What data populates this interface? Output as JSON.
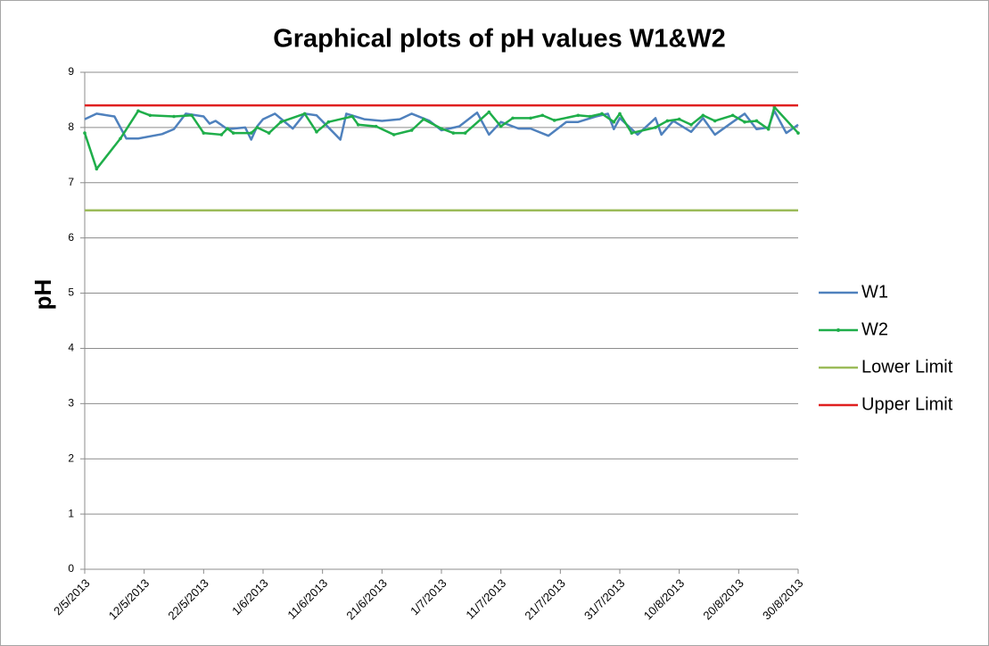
{
  "chart_data": {
    "type": "line",
    "title": "Graphical plots of pH values W1&W2",
    "y_label": "pH",
    "ylim": [
      0,
      9
    ],
    "yticks": [
      0,
      1,
      2,
      3,
      4,
      5,
      6,
      7,
      8,
      9
    ],
    "xlim": [
      "2/5/2013",
      "30/8/2013"
    ],
    "xticks": [
      "2/5/2013",
      "12/5/2013",
      "22/5/2013",
      "1/6/2013",
      "11/6/2013",
      "21/6/2013",
      "1/7/2013",
      "11/7/2013",
      "21/7/2013",
      "31/7/2013",
      "10/8/2013",
      "20/8/2013",
      "30/8/2013"
    ],
    "grid": true,
    "legend": "right",
    "series": [
      {
        "name": "W1",
        "color": "#4f81bd",
        "x": [
          "2/5/2013",
          "4/5/2013",
          "7/5/2013",
          "9/5/2013",
          "11/5/2013",
          "15/5/2013",
          "17/5/2013",
          "19/5/2013",
          "22/5/2013",
          "23/5/2013",
          "24/5/2013",
          "26/5/2013",
          "29/5/2013",
          "30/5/2013",
          "31/5/2013",
          "1/6/2013",
          "3/6/2013",
          "6/6/2013",
          "8/6/2013",
          "10/6/2013",
          "14/6/2013",
          "15/6/2013",
          "18/6/2013",
          "21/6/2013",
          "24/6/2013",
          "26/6/2013",
          "29/6/2013",
          "1/7/2013",
          "4/7/2013",
          "7/7/2013",
          "9/7/2013",
          "11/7/2013",
          "14/7/2013",
          "16/7/2013",
          "19/7/2013",
          "22/7/2013",
          "24/7/2013",
          "27/7/2013",
          "29/7/2013",
          "30/7/2013",
          "31/7/2013",
          "3/8/2013",
          "6/8/2013",
          "7/8/2013",
          "9/8/2013",
          "12/8/2013",
          "14/8/2013",
          "16/8/2013",
          "19/8/2013",
          "21/8/2013",
          "23/8/2013",
          "25/8/2013",
          "26/8/2013",
          "28/8/2013",
          "30/8/2013"
        ],
        "values": [
          8.15,
          8.25,
          8.2,
          7.8,
          7.8,
          7.88,
          7.97,
          8.25,
          8.2,
          8.07,
          8.12,
          7.97,
          8.0,
          7.78,
          8.02,
          8.15,
          8.25,
          7.98,
          8.25,
          8.22,
          7.78,
          8.25,
          8.15,
          8.12,
          8.15,
          8.25,
          8.12,
          7.95,
          8.02,
          8.27,
          7.87,
          8.1,
          7.98,
          7.98,
          7.85,
          8.1,
          8.1,
          8.2,
          8.25,
          7.97,
          8.17,
          7.87,
          8.17,
          7.87,
          8.12,
          7.92,
          8.17,
          7.87,
          8.1,
          8.25,
          7.97,
          8.0,
          8.3,
          7.9,
          8.05
        ]
      },
      {
        "name": "W2",
        "color": "#1fae4a",
        "x": [
          "2/5/2013",
          "4/5/2013",
          "8/5/2013",
          "11/5/2013",
          "13/5/2013",
          "17/5/2013",
          "20/5/2013",
          "22/5/2013",
          "25/5/2013",
          "26/5/2013",
          "27/5/2013",
          "30/5/2013",
          "31/5/2013",
          "2/6/2013",
          "4/6/2013",
          "8/6/2013",
          "10/6/2013",
          "12/6/2013",
          "16/6/2013",
          "17/6/2013",
          "20/6/2013",
          "23/6/2013",
          "26/6/2013",
          "28/6/2013",
          "1/7/2013",
          "3/7/2013",
          "5/7/2013",
          "9/7/2013",
          "11/7/2013",
          "13/7/2013",
          "16/7/2013",
          "18/7/2013",
          "20/7/2013",
          "24/7/2013",
          "26/7/2013",
          "28/7/2013",
          "30/7/2013",
          "31/7/2013",
          "2/8/2013",
          "6/8/2013",
          "8/8/2013",
          "10/8/2013",
          "12/8/2013",
          "14/8/2013",
          "16/8/2013",
          "19/8/2013",
          "21/8/2013",
          "23/8/2013",
          "25/8/2013",
          "26/8/2013",
          "30/8/2013"
        ],
        "values": [
          7.9,
          7.25,
          7.8,
          8.3,
          8.22,
          8.2,
          8.22,
          7.9,
          7.87,
          7.98,
          7.9,
          7.9,
          8.0,
          7.9,
          8.1,
          8.25,
          7.92,
          8.1,
          8.2,
          8.05,
          8.02,
          7.87,
          7.95,
          8.15,
          7.98,
          7.9,
          7.9,
          8.28,
          8.02,
          8.17,
          8.17,
          8.22,
          8.13,
          8.22,
          8.2,
          8.25,
          8.1,
          8.25,
          7.9,
          8.0,
          8.12,
          8.15,
          8.05,
          8.22,
          8.12,
          8.22,
          8.1,
          8.12,
          7.97,
          8.37,
          7.9
        ],
        "markers": true
      },
      {
        "name": "Lower Limit",
        "color": "#9bbb59",
        "x": [
          "2/5/2013",
          "30/8/2013"
        ],
        "values": [
          6.5,
          6.5
        ]
      },
      {
        "name": "Upper Limit",
        "color": "#e02020",
        "x": [
          "2/5/2013",
          "30/8/2013"
        ],
        "values": [
          8.4,
          8.4
        ]
      }
    ]
  }
}
